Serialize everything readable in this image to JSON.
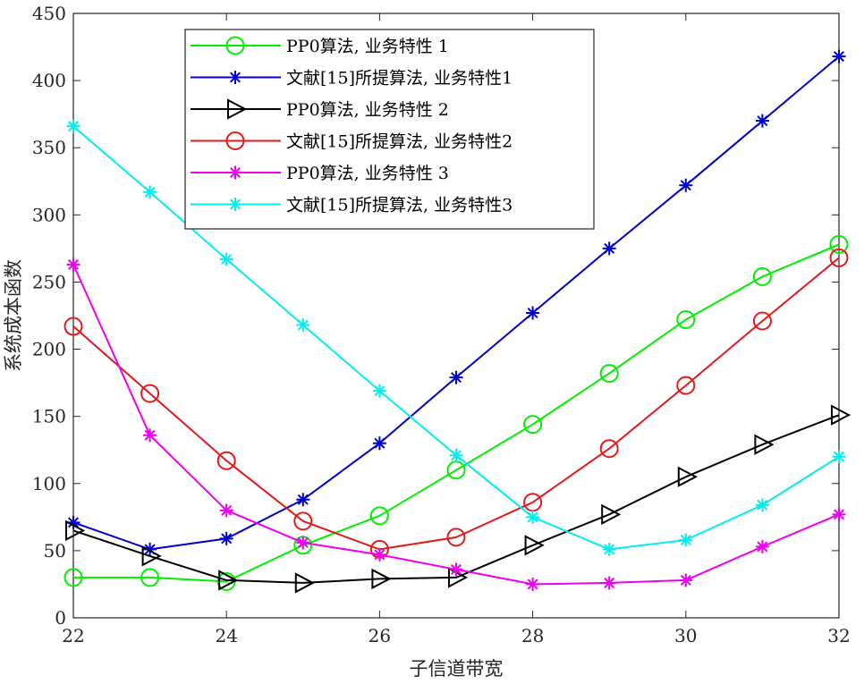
{
  "chart_data": {
    "type": "line",
    "title": "",
    "xlabel": "子信道带宽",
    "ylabel": "系统成本函数",
    "xlim": [
      22,
      32
    ],
    "ylim": [
      0,
      450
    ],
    "xticks": [
      22,
      24,
      26,
      28,
      30,
      32
    ],
    "yticks": [
      0,
      50,
      100,
      150,
      200,
      250,
      300,
      350,
      400,
      450
    ],
    "grid": false,
    "legend_position": "top-center",
    "x": [
      22,
      23,
      24,
      25,
      26,
      27,
      28,
      29,
      30,
      31,
      32
    ],
    "series": [
      {
        "name": "PP0算法, 业务特性 1",
        "color": "#00ee00",
        "marker": "circle",
        "values": [
          30,
          30,
          27,
          54,
          76,
          110,
          144,
          182,
          222,
          254,
          278
        ]
      },
      {
        "name": "文献[15]所提算法, 业务特性1",
        "color": "#0000cd",
        "marker": "asterisk",
        "values": [
          71,
          51,
          59,
          88,
          130,
          179,
          227,
          275,
          322,
          370,
          418
        ]
      },
      {
        "name": "PP0算法, 业务特性 2",
        "color": "#000000",
        "marker": "triangle-right",
        "values": [
          65,
          46,
          28,
          26,
          29,
          30,
          54,
          77,
          105,
          129,
          151
        ]
      },
      {
        "name": "文献[15]所提算法, 业务特性2",
        "color": "#e31a1a",
        "marker": "circle",
        "values": [
          217,
          167,
          117,
          72,
          51,
          60,
          86,
          126,
          173,
          221,
          268
        ]
      },
      {
        "name": "PP0算法, 业务特性 3",
        "color": "#ee00ee",
        "marker": "asterisk",
        "values": [
          263,
          136,
          80,
          56,
          47,
          36,
          25,
          26,
          28,
          53,
          77
        ]
      },
      {
        "name": "文献[15]所提算法, 业务特性3",
        "color": "#00eeee",
        "marker": "asterisk",
        "values": [
          366,
          317,
          267,
          218,
          169,
          121,
          75,
          51,
          58,
          84,
          120
        ]
      }
    ]
  }
}
